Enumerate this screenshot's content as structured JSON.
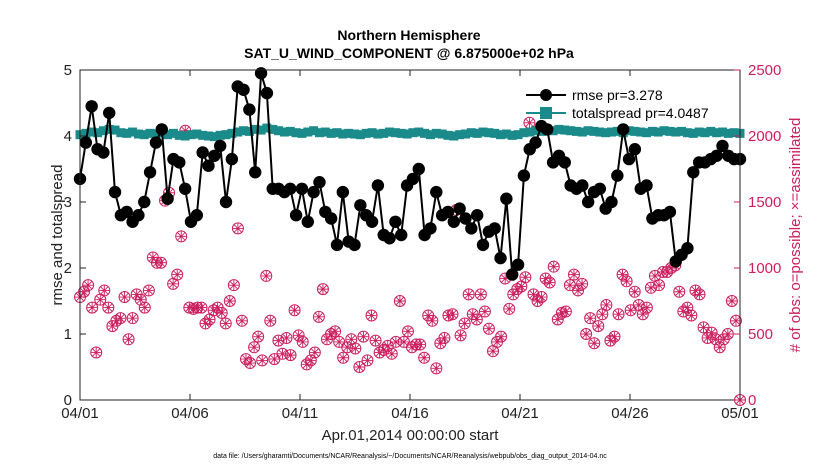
{
  "chart_data": {
    "type": "line",
    "title": "Northern Hemisphere",
    "subtitle": "SAT_U_WIND_COMPONENT @ 6.875000e+02 hPa",
    "xlabel": "Apr.01,2014 00:00:00 start",
    "ylabel": "rmse and totalspread",
    "ylabel_right": "# of obs: o=possible; ×=assimilated",
    "footnote": "data file: /Users/gharamti/Documents/NCAR/Reanalysis/~/Documents/NCAR/Reanalysis/webpub/obs_diag_output_2014-04.nc",
    "xlim": [
      0,
      30
    ],
    "ylim": [
      0,
      5
    ],
    "ylim_right": [
      0,
      2500
    ],
    "x_ticks": [
      0,
      5,
      10,
      15,
      20,
      25,
      30
    ],
    "x_tick_labels": [
      "04/01",
      "04/06",
      "04/11",
      "04/16",
      "04/21",
      "04/26",
      "05/01"
    ],
    "y_tick_labels": [
      "0",
      "1",
      "2",
      "3",
      "4",
      "5"
    ],
    "y_right_tick_labels": [
      "0",
      "500",
      "1000",
      "1500",
      "2000",
      "2500"
    ],
    "colors": {
      "rmse": "#000000",
      "spread": "#1a8a8a",
      "obs": "#cc1f5e"
    },
    "legend": {
      "placement": "top-right",
      "entries": [
        "rmse pr=3.278",
        "totalspread pr=4.0487"
      ]
    },
    "series": [
      {
        "name": "rmse pr=3.278",
        "axis": "left",
        "values": [
          3.35,
          3.9,
          4.45,
          3.8,
          3.75,
          4.35,
          3.15,
          2.8,
          2.85,
          2.7,
          2.8,
          3.0,
          3.45,
          3.9,
          4.1,
          3.05,
          3.65,
          3.6,
          3.2,
          2.7,
          2.8,
          3.75,
          3.55,
          3.7,
          3.85,
          3.0,
          3.65,
          4.75,
          4.7,
          4.4,
          3.45,
          4.95,
          4.65,
          3.2,
          3.2,
          3.15,
          3.2,
          2.8,
          3.2,
          2.7,
          3.15,
          3.3,
          2.85,
          2.75,
          2.35,
          3.15,
          2.4,
          2.35,
          2.95,
          2.8,
          2.7,
          3.25,
          2.5,
          2.45,
          2.7,
          2.5,
          3.25,
          3.35,
          3.5,
          2.5,
          2.6,
          3.15,
          2.8,
          2.85,
          2.7,
          2.9,
          2.75,
          2.6,
          2.8,
          2.35,
          2.55,
          2.6,
          2.15,
          3.05,
          1.9,
          2.05,
          3.4,
          3.8,
          3.9,
          4.15,
          4.1,
          3.6,
          3.7,
          3.6,
          3.25,
          3.2,
          3.25,
          3.0,
          3.15,
          3.2,
          2.9,
          3.0,
          3.4,
          4.1,
          3.65,
          3.8,
          3.2,
          3.25,
          2.75,
          2.8,
          2.8,
          2.85,
          2.1,
          2.2,
          2.3,
          3.45,
          3.6,
          3.6,
          3.65,
          3.7,
          3.85,
          3.7,
          3.65,
          3.65
        ]
      },
      {
        "name": "totalspread pr=4.0487",
        "axis": "left",
        "values": [
          4.02,
          4.04,
          4.06,
          4.05,
          4.08,
          4.1,
          4.09,
          4.05,
          4.04,
          4.06,
          4.03,
          4.02,
          4.04,
          4.03,
          4.05,
          4.02,
          4.04,
          4.01,
          4.0,
          4.02,
          4.03,
          4.01,
          4.0,
          3.99,
          4.01,
          4.02,
          4.04,
          4.06,
          4.08,
          4.07,
          4.1,
          4.09,
          4.12,
          4.1,
          4.08,
          4.06,
          4.07,
          4.05,
          4.04,
          4.06,
          4.08,
          4.05,
          4.06,
          4.04,
          4.05,
          4.03,
          4.04,
          4.03,
          4.02,
          4.04,
          4.05,
          4.03,
          4.04,
          4.06,
          4.05,
          4.04,
          4.03,
          4.05,
          4.06,
          4.04,
          4.02,
          4.04,
          4.03,
          4.01,
          4.0,
          4.02,
          4.03,
          4.05,
          4.04,
          4.06,
          4.05,
          4.04,
          4.02,
          4.03,
          4.01,
          4.02,
          4.05,
          4.06,
          4.08,
          4.07,
          4.09,
          4.08,
          4.1,
          4.09,
          4.08,
          4.07,
          4.06,
          4.08,
          4.07,
          4.06,
          4.05,
          4.06,
          4.07,
          4.05,
          4.08,
          4.07,
          4.06,
          4.05,
          4.07,
          4.06,
          4.08,
          4.07,
          4.06,
          4.07,
          4.05,
          4.04,
          4.06,
          4.05,
          4.07,
          4.05,
          4.06,
          4.04,
          4.05,
          4.04
        ]
      },
      {
        "name": "# of obs (possible / assimilated)",
        "axis": "right",
        "values": [
          780,
          820,
          870,
          700,
          360,
          760,
          830,
          700,
          560,
          600,
          620,
          780,
          460,
          620,
          800,
          760,
          700,
          830,
          1080,
          1040,
          1040,
          1510,
          1570,
          880,
          950,
          1240,
          2040,
          700,
          690,
          700,
          700,
          580,
          610,
          680,
          700,
          660,
          580,
          750,
          870,
          1300,
          600,
          310,
          280,
          400,
          480,
          300,
          940,
          600,
          310,
          450,
          350,
          470,
          340,
          680,
          490,
          440,
          270,
          300,
          360,
          630,
          840,
          460,
          500,
          520,
          440,
          320,
          400,
          460,
          390,
          250,
          480,
          300,
          640,
          450,
          360,
          380,
          410,
          350,
          440,
          750,
          440,
          520,
          400,
          420,
          420,
          320,
          640,
          600,
          240,
          430,
          470,
          640,
          650,
          1440,
          490,
          580,
          800,
          650,
          610,
          800,
          670,
          540,
          370,
          440,
          480,
          920,
          690,
          800,
          840,
          860,
          930,
          2100,
          800,
          750,
          780,
          920,
          890,
          1010,
          610,
          660,
          670,
          870,
          950,
          830,
          880,
          500,
          620,
          430,
          560,
          650,
          720,
          450,
          480,
          650,
          950,
          900,
          680,
          820,
          720,
          650,
          700,
          850,
          940,
          870,
          970,
          970,
          1000,
          1020,
          820,
          670,
          700,
          640,
          830,
          800,
          550,
          470,
          510,
          460,
          400,
          460,
          500,
          750,
          600,
          0
        ]
      }
    ]
  }
}
